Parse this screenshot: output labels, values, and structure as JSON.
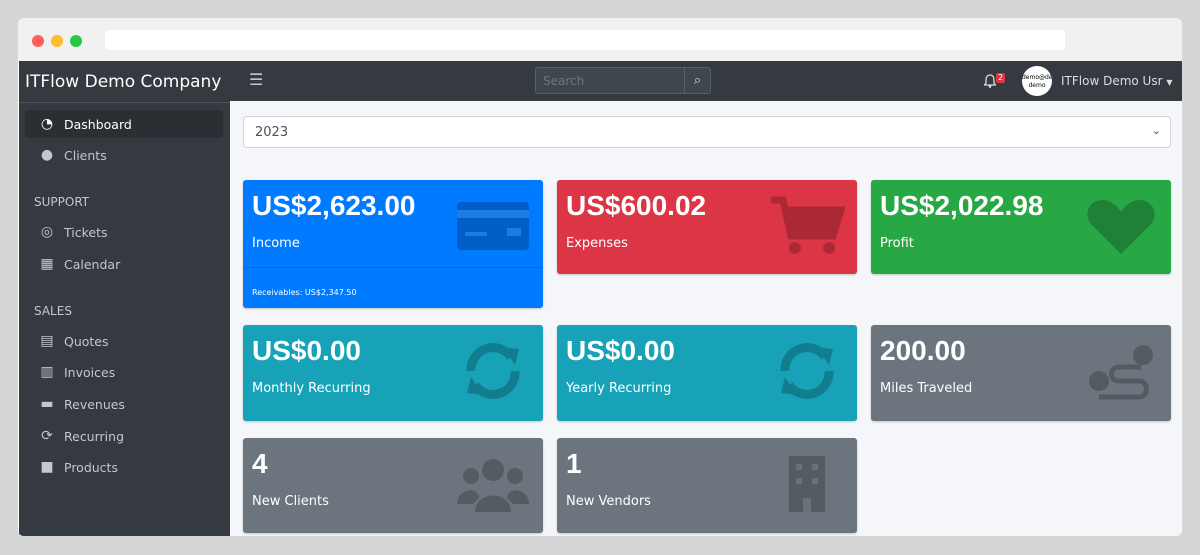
{
  "company": "ITFlow Demo Company",
  "sidebar": {
    "items": [
      {
        "label": "Dashboard",
        "icon": "tachometer-icon"
      },
      {
        "label": "Clients",
        "icon": "users-icon"
      },
      {
        "label": "Tickets",
        "icon": "life-ring-icon"
      },
      {
        "label": "Calendar",
        "icon": "calendar-icon"
      },
      {
        "label": "Quotes",
        "icon": "file-icon"
      },
      {
        "label": "Invoices",
        "icon": "file-invoice-icon"
      },
      {
        "label": "Revenues",
        "icon": "credit-card-icon"
      },
      {
        "label": "Recurring",
        "icon": "sync-icon"
      },
      {
        "label": "Products",
        "icon": "box-icon"
      }
    ],
    "headers": {
      "support": "SUPPORT",
      "sales": "SALES"
    }
  },
  "topbar": {
    "search_placeholder": "Search",
    "notifications": "2",
    "avatar_text": "demo@demo demo",
    "user": "ITFlow Demo Usr"
  },
  "year": "2023",
  "cards": [
    {
      "value": "US$2,623.00",
      "label": "Income",
      "footer": "Receivables: US$2,347.50",
      "color": "#007bff",
      "icon": "credit-card-icon"
    },
    {
      "value": "US$600.02",
      "label": "Expenses",
      "color": "#dc3545",
      "icon": "shopping-cart-icon"
    },
    {
      "value": "US$2,022.98",
      "label": "Profit",
      "color": "#28a745",
      "icon": "heart-icon"
    },
    {
      "value": "US$0.00",
      "label": "Monthly Recurring",
      "color": "#17a2b8",
      "icon": "sync-icon"
    },
    {
      "value": "US$0.00",
      "label": "Yearly Recurring",
      "color": "#17a2b8",
      "icon": "sync-icon"
    },
    {
      "value": "200.00",
      "label": "Miles Traveled",
      "color": "#6c757d",
      "icon": "route-icon"
    },
    {
      "value": "4",
      "label": "New Clients",
      "color": "#6c757d",
      "icon": "users-icon"
    },
    {
      "value": "1",
      "label": "New Vendors",
      "color": "#6c757d",
      "icon": "building-icon"
    }
  ]
}
